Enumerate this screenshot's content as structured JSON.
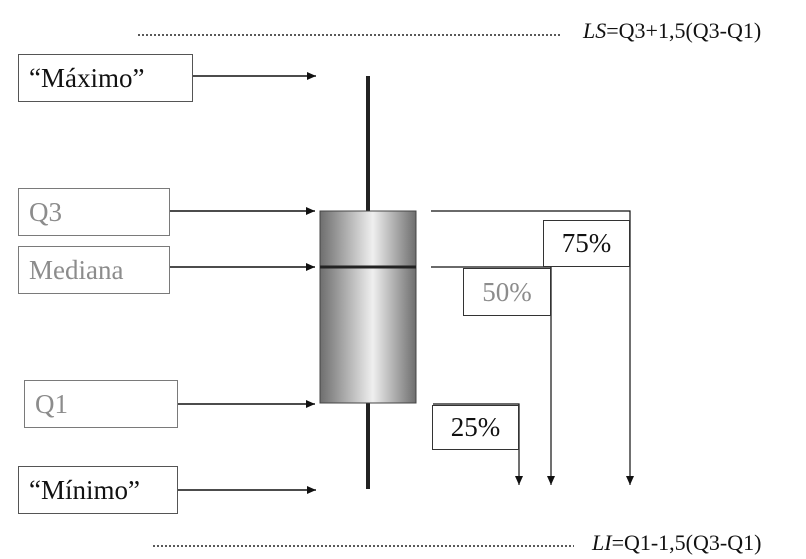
{
  "labels": {
    "maximo": "“Máximo”",
    "q3": "Q3",
    "mediana": "Mediana",
    "q1": "Q1",
    "minimo": "“Mínimo”"
  },
  "percentages": {
    "p75": "75%",
    "p50": "50%",
    "p25": "25%"
  },
  "limits": {
    "upper_symbol": "LS",
    "upper_formula": "=Q3+1,5(Q3-Q1)",
    "lower_symbol": "LI",
    "lower_formula": "=Q1-1,5(Q3-Q1)"
  },
  "colors": {
    "box_edge": "#6e6e6e",
    "box_center": "#ededed",
    "label_grey": "#8c8c8c"
  }
}
